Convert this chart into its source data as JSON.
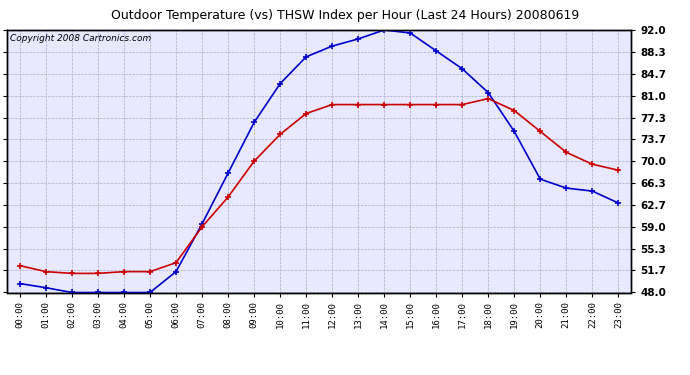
{
  "title": "Outdoor Temperature (vs) THSW Index per Hour (Last 24 Hours) 20080619",
  "copyright": "Copyright 2008 Cartronics.com",
  "hours": [
    0,
    1,
    2,
    3,
    4,
    5,
    6,
    7,
    8,
    9,
    10,
    11,
    12,
    13,
    14,
    15,
    16,
    17,
    18,
    19,
    20,
    21,
    22,
    23
  ],
  "temp": [
    52.5,
    51.5,
    51.2,
    51.2,
    51.5,
    51.5,
    53.0,
    59.0,
    64.0,
    70.0,
    74.5,
    78.0,
    79.5,
    79.5,
    79.5,
    79.5,
    79.5,
    79.5,
    80.5,
    78.5,
    75.0,
    71.5,
    69.5,
    68.5
  ],
  "thsw": [
    49.5,
    48.8,
    48.0,
    48.0,
    48.0,
    48.0,
    51.5,
    59.5,
    68.0,
    76.5,
    83.0,
    87.5,
    89.3,
    90.5,
    92.0,
    91.5,
    88.5,
    85.5,
    81.5,
    75.0,
    67.0,
    65.5,
    65.0,
    63.0
  ],
  "ylim": [
    48.0,
    92.0
  ],
  "yticks": [
    48.0,
    51.7,
    55.3,
    59.0,
    62.7,
    66.3,
    70.0,
    73.7,
    77.3,
    81.0,
    84.7,
    88.3,
    92.0
  ],
  "temp_color": "#cc0000",
  "thsw_color": "#0000cc",
  "bg_color": "#ffffff",
  "grid_color": "#aaaacc",
  "plot_bg_color": "#e8e8ff",
  "title_fontsize": 9,
  "copyright_fontsize": 6.5
}
